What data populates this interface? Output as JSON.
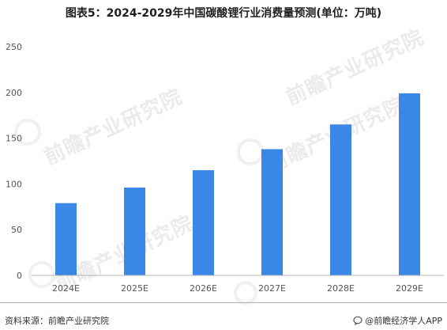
{
  "title": "图表5：2024-2029年中国碳酸锂行业消费量预测(单位：万吨)",
  "footer": {
    "source": "资料来源：前瞻产业研究院",
    "brand": "@前瞻经济学人APP",
    "brand_icon": "chat-bubble-icon"
  },
  "watermark": "前瞻产业研究院",
  "colors": {
    "bar": "#3a87e8",
    "axis": "#b3b3b3"
  },
  "chart_data": {
    "type": "bar",
    "title": "图表5：2024-2029年中国碳酸锂行业消费量预测(单位：万吨)",
    "xlabel": "",
    "ylabel": "",
    "categories": [
      "2024E",
      "2025E",
      "2026E",
      "2027E",
      "2028E",
      "2029E"
    ],
    "values": [
      79,
      96,
      115,
      138,
      165,
      199
    ],
    "ylim": [
      0,
      250
    ],
    "yticks": [
      0,
      50,
      100,
      150,
      200,
      250
    ],
    "grid": false,
    "legend": "none"
  }
}
